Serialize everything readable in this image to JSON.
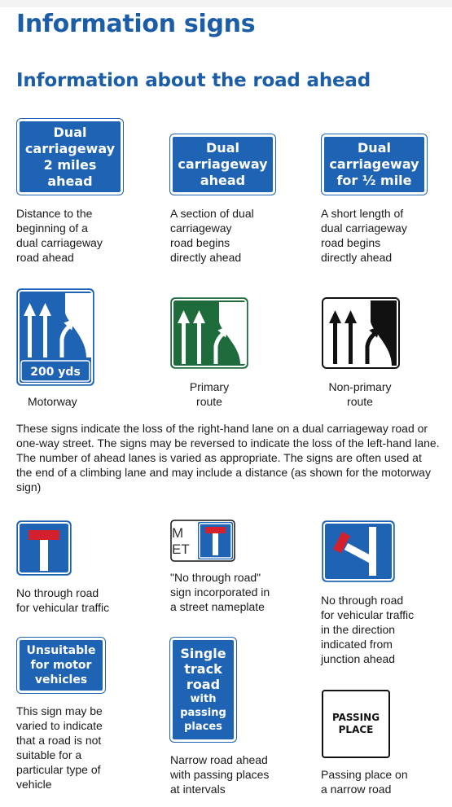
{
  "page": {
    "title": "Information signs",
    "section_title": "Information about the road ahead"
  },
  "row1": [
    {
      "sign_lines": [
        "Dual",
        "carriageway",
        "2 miles",
        "ahead"
      ],
      "caption": [
        "Distance to the",
        "beginning of a",
        "dual carriageway",
        "road ahead"
      ]
    },
    {
      "sign_lines": [
        "Dual",
        "carriageway",
        "ahead"
      ],
      "caption": [
        "A section of dual",
        "carriageway",
        "road begins",
        "directly ahead"
      ]
    },
    {
      "sign_lines": [
        "Dual",
        "carriageway",
        "for ½ mile"
      ],
      "caption": [
        "A short length of",
        "dual carriageway",
        "road begins",
        "directly ahead"
      ]
    }
  ],
  "row2": {
    "motorway_plate": "200 yds",
    "motorway_caption": "Motorway",
    "primary_caption": [
      "Primary",
      "route"
    ],
    "nonprimary_caption": [
      "Non-primary",
      "route"
    ],
    "colors": {
      "motorway": "#1f64b4",
      "primary": "#1e6b3c",
      "nonprimary": "#ffffff"
    }
  },
  "lane_paragraph": "These signs indicate the loss of the right-hand lane on a dual carriageway road or one-way street. The signs may be reversed to indicate the loss of the left-hand lane. The number of ahead lanes is varied as appropriate. The signs are often used at the end of a climbing lane and may include a distance (as shown for the motorway sign)",
  "row3": {
    "nameplate_letters": [
      "M",
      "ET"
    ],
    "no_through_caption": [
      "No through road",
      "for vehicular traffic"
    ],
    "nameplate_caption": [
      "\"No through road\"",
      "sign incorporated in",
      "a street nameplate"
    ],
    "junction_caption": [
      "No through road",
      "for vehicular traffic",
      "in the direction",
      "indicated from",
      "junction ahead"
    ]
  },
  "row4": {
    "unsuitable_sign": [
      "Unsuitable",
      "for motor",
      "vehicles"
    ],
    "unsuitable_caption": [
      "This sign may be",
      "varied to indicate",
      "that a road is not",
      "suitable for a",
      "particular type of",
      "vehicle"
    ],
    "single_track_sign": [
      "Single",
      "track",
      "road",
      "with",
      "passing",
      "places"
    ],
    "single_track_caption": [
      "Narrow road ahead",
      "with passing places",
      "at intervals"
    ],
    "passing_sign": [
      "PASSING",
      "PLACE"
    ],
    "passing_caption": [
      "Passing place on",
      "a narrow road"
    ]
  }
}
